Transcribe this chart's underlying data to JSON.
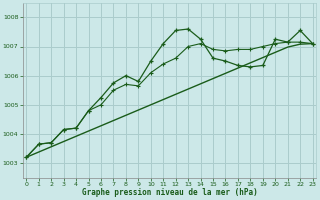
{
  "title": "Graphe pression niveau de la mer (hPa)",
  "bg_color": "#cce8e8",
  "grid_color": "#aacccc",
  "line_color": "#1a5c1a",
  "x_ticks": [
    0,
    1,
    2,
    3,
    4,
    5,
    6,
    7,
    8,
    9,
    10,
    11,
    12,
    13,
    14,
    15,
    16,
    17,
    18,
    19,
    20,
    21,
    22,
    23
  ],
  "y_ticks": [
    1003,
    1004,
    1005,
    1006,
    1007,
    1008
  ],
  "xlim": [
    -0.3,
    23.3
  ],
  "ylim": [
    1002.5,
    1008.5
  ],
  "series_main": [
    1003.2,
    1003.65,
    1003.7,
    1004.15,
    1004.2,
    1004.8,
    1005.25,
    1005.75,
    1006.0,
    1005.8,
    1006.5,
    1007.1,
    1007.55,
    1007.6,
    1007.25,
    1006.6,
    1006.5,
    1006.35,
    1006.3,
    1006.35,
    1007.25,
    1007.15,
    1007.55,
    1007.1
  ],
  "series_flat": [
    1003.2,
    1003.65,
    1003.7,
    1004.15,
    1004.2,
    1004.8,
    1005.0,
    1005.5,
    1005.7,
    1005.65,
    1006.1,
    1006.4,
    1006.6,
    1007.0,
    1007.1,
    1006.9,
    1006.85,
    1006.9,
    1006.9,
    1007.0,
    1007.1,
    1007.15,
    1007.15,
    1007.1
  ],
  "series_linear": [
    1003.2,
    1003.38,
    1003.56,
    1003.74,
    1003.92,
    1004.1,
    1004.28,
    1004.46,
    1004.64,
    1004.82,
    1005.0,
    1005.18,
    1005.36,
    1005.54,
    1005.72,
    1005.9,
    1006.08,
    1006.26,
    1006.44,
    1006.62,
    1006.8,
    1006.98,
    1007.08,
    1007.1
  ]
}
